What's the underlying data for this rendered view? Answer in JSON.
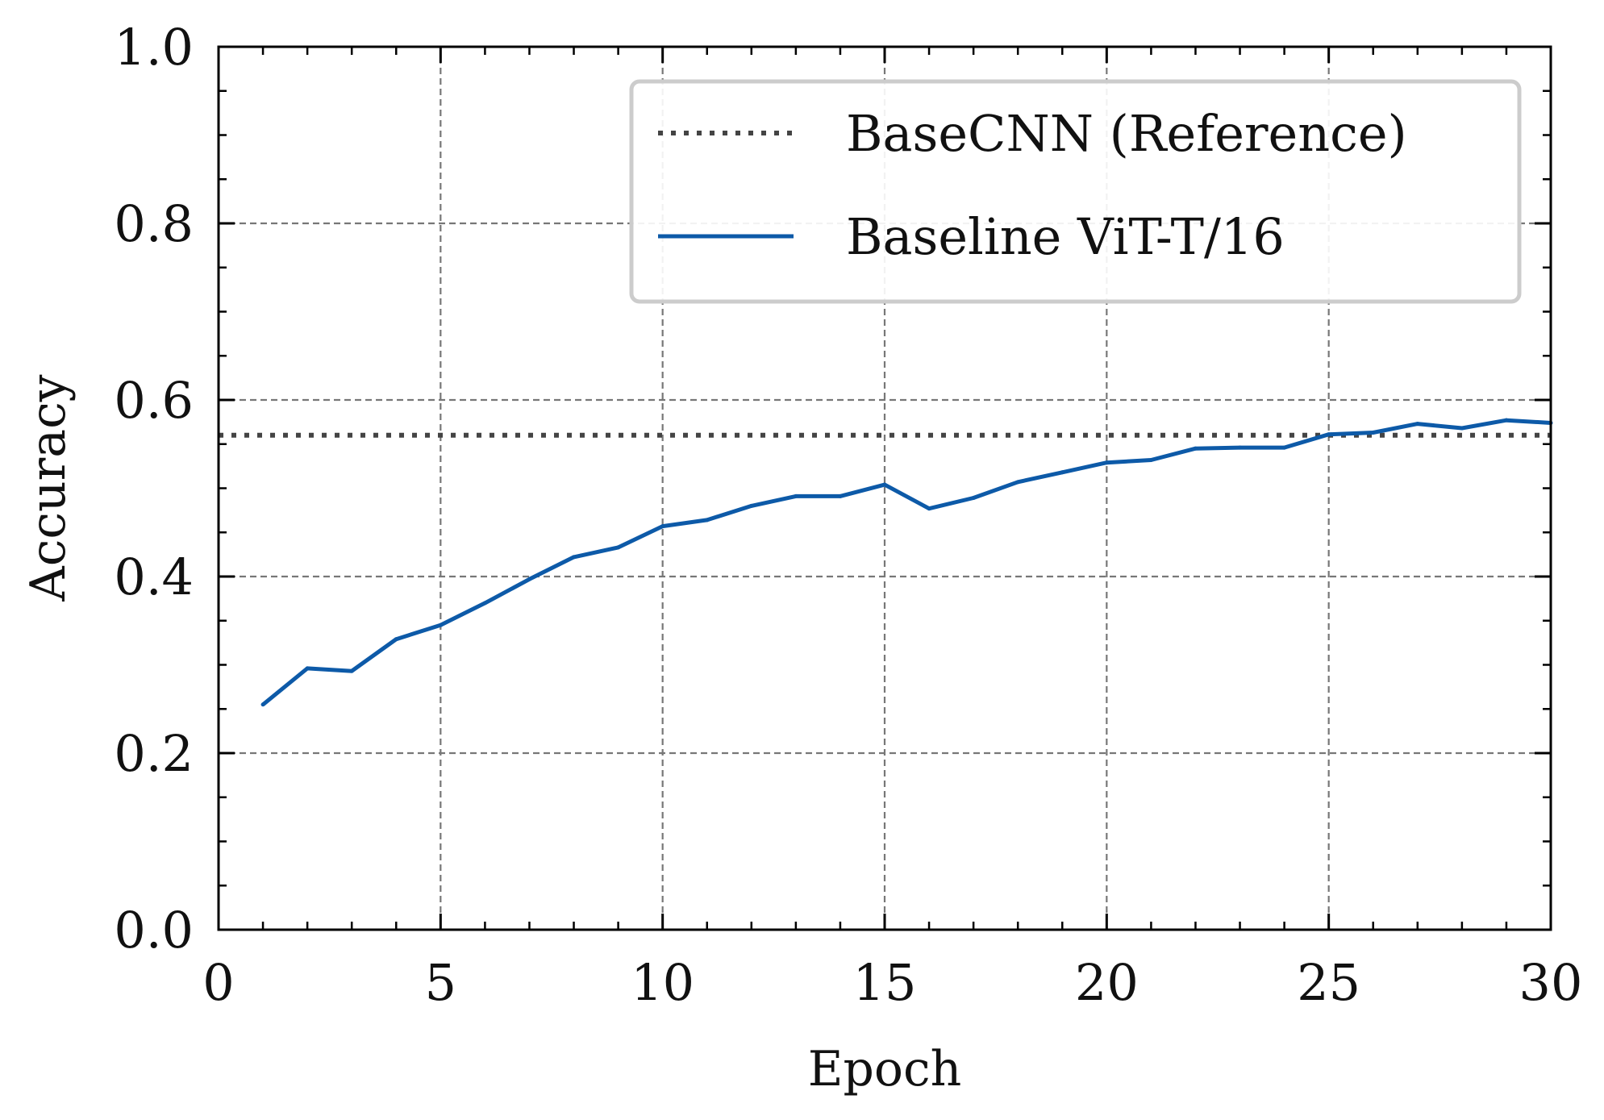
{
  "chart_data": {
    "type": "line",
    "xlabel": "Epoch",
    "ylabel": "Accuracy",
    "xlim": [
      0,
      30
    ],
    "ylim": [
      0.0,
      1.0
    ],
    "xticks": [
      "0",
      "5",
      "10",
      "15",
      "20",
      "25",
      "30"
    ],
    "yticks": [
      "0.0",
      "0.2",
      "0.4",
      "0.6",
      "0.8",
      "1.0"
    ],
    "grid": true,
    "legend_position": "top-right",
    "series": [
      {
        "name": "BaseCNN (Reference)",
        "style": "dotted-hline",
        "color": "#444444",
        "y": 0.56
      },
      {
        "name": "Baseline ViT-T/16",
        "style": "solid",
        "color": "#0d5aa8",
        "x": [
          1,
          2,
          3,
          4,
          5,
          6,
          7,
          8,
          9,
          10,
          11,
          12,
          13,
          14,
          15,
          16,
          17,
          18,
          19,
          20,
          21,
          22,
          23,
          24,
          25,
          26,
          27,
          28,
          29,
          30
        ],
        "values": [
          0.255,
          0.296,
          0.293,
          0.329,
          0.345,
          0.37,
          0.397,
          0.422,
          0.433,
          0.457,
          0.464,
          0.48,
          0.491,
          0.491,
          0.504,
          0.477,
          0.489,
          0.507,
          0.518,
          0.529,
          0.532,
          0.545,
          0.546,
          0.546,
          0.561,
          0.563,
          0.573,
          0.568,
          0.577,
          0.574
        ]
      }
    ]
  }
}
